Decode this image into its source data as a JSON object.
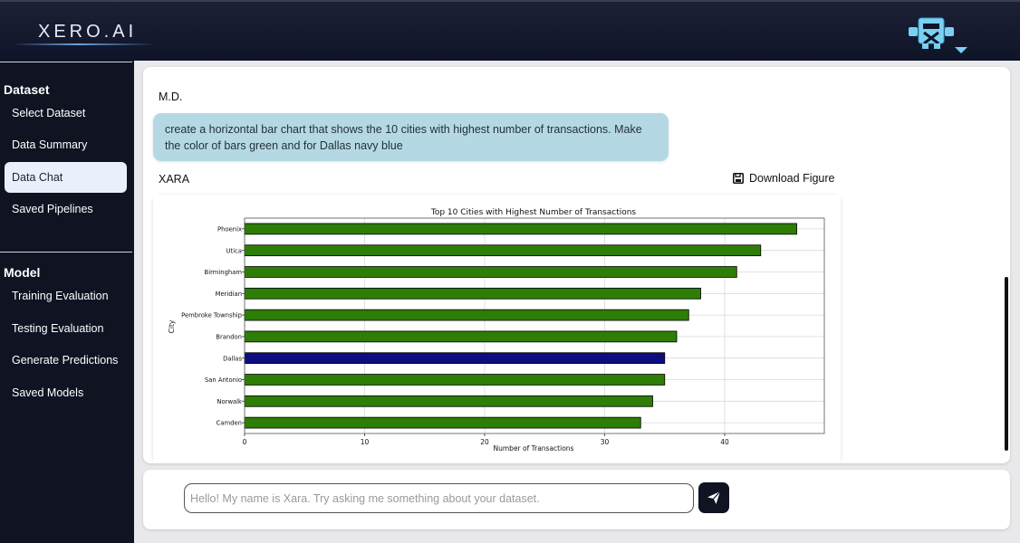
{
  "header": {
    "logo_text": "XERO.AI",
    "avatar_icon": "robot-avatar-icon",
    "menu_icon": "chevron-down-icon"
  },
  "sidebar": {
    "dataset_heading": "Dataset",
    "dataset_items": [
      {
        "label": "Select Dataset"
      },
      {
        "label": "Data Summary"
      },
      {
        "label": "Data Chat"
      },
      {
        "label": "Saved Pipelines"
      }
    ],
    "model_heading": "Model",
    "model_items": [
      {
        "label": "Training Evaluation"
      },
      {
        "label": "Testing Evaluation"
      },
      {
        "label": "Generate Predictions"
      },
      {
        "label": "Saved Models"
      }
    ],
    "active_item": "Data Chat"
  },
  "chat": {
    "user_name": "M.D.",
    "user_message": "create a horizontal bar chart that shows the 10 cities with highest number of transactions. Make the color of bars green and for Dallas navy blue",
    "bot_name": "XARA",
    "download_label": "Download Figure"
  },
  "input": {
    "placeholder": "Hello! My name is Xara. Try asking me something about your dataset.",
    "value": ""
  },
  "colors": {
    "bar_default": "#2e7d07",
    "bar_highlight": "#0d0d80",
    "accent_dark": "#0f1322",
    "bubble": "#b5d9e4"
  },
  "chart_data": {
    "type": "bar",
    "orientation": "horizontal",
    "title": "Top 10 Cities with Highest Number of Transactions",
    "xlabel": "Number of Transactions",
    "ylabel": "City",
    "categories": [
      "Phoenix",
      "Utica",
      "Birmingham",
      "Meridian",
      "Pembroke Township",
      "Brandon",
      "Dallas",
      "San Antonio",
      "Norwalk",
      "Camden"
    ],
    "values": [
      46,
      43,
      41,
      38,
      37,
      36,
      35,
      35,
      34,
      33
    ],
    "highlight": "Dallas",
    "xlim": [
      0,
      48.3
    ],
    "xticks": [
      0,
      10,
      20,
      30,
      40
    ],
    "grid": true
  }
}
